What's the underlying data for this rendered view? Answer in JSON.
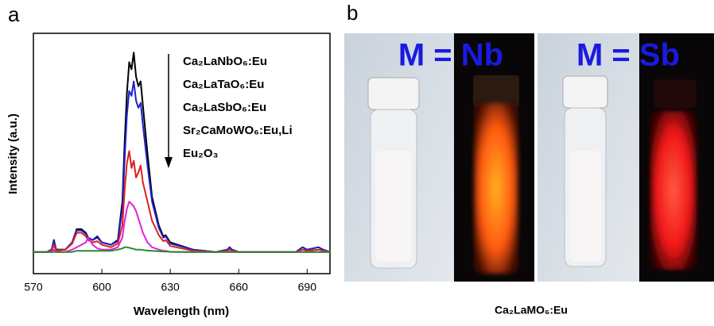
{
  "chart_data": {
    "type": "line",
    "panel_label": "a",
    "xlabel": "Wavelength (nm)",
    "ylabel": "Intensity (a.u.)",
    "x": [
      570,
      576,
      578,
      579,
      580,
      584,
      587,
      589,
      591,
      593,
      594,
      596,
      598,
      600,
      604,
      607,
      609,
      610,
      611,
      612,
      613,
      614,
      615,
      616,
      617,
      618,
      620,
      622,
      625,
      627,
      628,
      630,
      640,
      650,
      655,
      656,
      657,
      660,
      675,
      685,
      688,
      690,
      695,
      697,
      700
    ],
    "series": [
      {
        "name": "Ca₂LaNbO₆:Eu",
        "color": "#000000",
        "values": [
          9,
          9,
          10,
          14,
          10,
          10,
          13,
          18.5,
          18.5,
          17,
          15,
          14,
          15.5,
          13,
          12,
          14,
          30,
          55,
          75,
          88,
          85,
          92,
          82,
          78,
          80,
          70,
          50,
          32,
          20,
          15.5,
          16,
          13,
          10,
          9,
          10,
          11,
          10,
          9,
          9,
          9,
          11,
          10,
          11,
          10,
          9
        ]
      },
      {
        "name": "Ca₂LaTaO₆:Eu",
        "color": "#2020d0",
        "values": [
          9,
          9,
          10,
          13.5,
          10,
          10,
          13,
          18,
          18,
          16.5,
          15,
          14,
          15,
          13,
          12,
          13.5,
          27,
          48,
          66,
          76,
          74,
          80,
          72,
          69,
          71,
          62,
          45,
          30,
          19,
          15,
          15.5,
          12.5,
          10,
          9,
          10,
          11,
          10,
          9,
          9,
          9,
          11,
          10,
          11,
          10,
          9
        ]
      },
      {
        "name": "Ca₂LaSbO₆:Eu",
        "color": "#e0201a",
        "values": [
          9,
          9,
          9.5,
          12,
          9.5,
          10,
          12.5,
          17,
          17,
          15.5,
          14,
          13,
          13.5,
          12,
          11,
          12.5,
          20,
          35,
          46,
          51,
          44,
          47,
          40,
          42,
          45,
          38,
          30,
          22,
          16,
          13.5,
          14,
          11.5,
          9.5,
          9,
          9.5,
          10,
          9.5,
          9,
          9,
          9,
          10,
          9.5,
          10,
          9.5,
          9
        ]
      },
      {
        "name": "Sr₂CaMoWO₆:Eu,Li",
        "color": "#e020e0",
        "values": [
          9,
          9,
          9,
          10,
          9,
          9,
          10,
          11,
          12,
          13,
          15,
          12,
          10.5,
          10,
          10,
          11,
          15,
          22,
          27,
          30,
          29,
          28,
          26,
          23,
          20,
          17,
          13,
          11,
          10,
          9.5,
          9.5,
          9,
          9,
          9,
          9,
          9,
          9,
          9,
          9,
          9,
          9,
          9,
          9,
          9,
          9
        ]
      },
      {
        "name": "Eu₂O₃",
        "color": "#2a8a2a",
        "values": [
          9,
          9,
          9,
          9,
          9,
          9,
          9,
          9.5,
          9.5,
          9.5,
          9.5,
          9.5,
          9.5,
          9.5,
          9.5,
          10,
          10.5,
          11,
          11,
          10.8,
          10.5,
          10.3,
          10,
          10,
          10,
          9.8,
          9.6,
          9.5,
          9.3,
          9.2,
          9.2,
          9.1,
          9,
          9,
          9,
          9,
          9,
          9,
          9,
          9,
          9,
          9,
          9,
          9,
          9
        ]
      }
    ],
    "xlim": [
      570,
      700
    ],
    "ylim": [
      0,
      100
    ],
    "xticks": [
      570,
      600,
      630,
      660,
      690
    ]
  },
  "panel_b": {
    "label": "b",
    "caption": "Ca₂LaMO₆:Eu",
    "photos": [
      {
        "label": "M = Nb"
      },
      {
        "label": "M = Sb"
      }
    ]
  }
}
